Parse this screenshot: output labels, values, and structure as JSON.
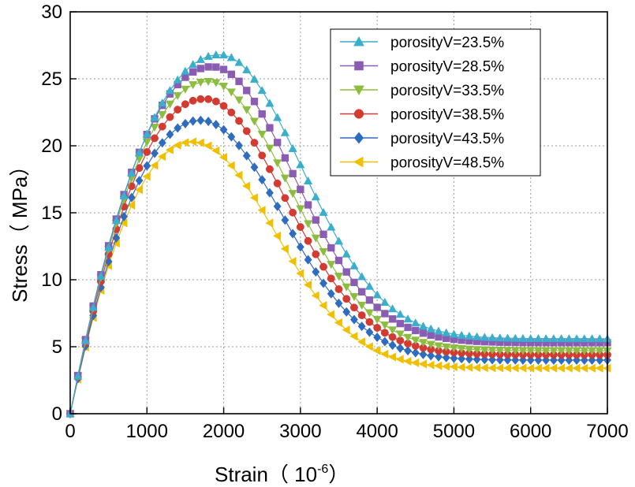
{
  "chart_data": {
    "type": "scatter",
    "title": "",
    "xlabel": "Strain",
    "xlabel_unit_base": "（ 10",
    "xlabel_unit_exp": "-6",
    "xlabel_unit_close": "）",
    "ylabel": "Stress（ MPa）",
    "xlim": [
      0,
      7000
    ],
    "ylim": [
      0,
      30
    ],
    "xticks": [
      0,
      1000,
      2000,
      3000,
      4000,
      5000,
      6000,
      7000
    ],
    "yticks": [
      0,
      5,
      10,
      15,
      20,
      25,
      30
    ],
    "x_tick_labels": [
      "0",
      "1000",
      "2000",
      "3000",
      "4000",
      "5000",
      "6000",
      "7000"
    ],
    "y_tick_labels": [
      "0",
      "5",
      "10",
      "15",
      "20",
      "25",
      "30"
    ],
    "grid": true,
    "legend_position": "top-right",
    "series": [
      {
        "name": "porosityV=23.5%",
        "color": "#3aaecb",
        "marker": "triangle-up",
        "peak_x": 1950,
        "peak_y": 26.8,
        "final_y": 5.6
      },
      {
        "name": "porosityV=28.5%",
        "color": "#8a5db3",
        "marker": "square",
        "peak_x": 1850,
        "peak_y": 25.9,
        "final_y": 5.3
      },
      {
        "name": "porosityV=33.5%",
        "color": "#8cbd3f",
        "marker": "triangle-down",
        "peak_x": 1800,
        "peak_y": 24.8,
        "final_y": 4.7
      },
      {
        "name": "porosityV=38.5%",
        "color": "#d23a32",
        "marker": "circle",
        "peak_x": 1750,
        "peak_y": 23.5,
        "final_y": 4.4
      },
      {
        "name": "porosityV=43.5%",
        "color": "#2e6cc0",
        "marker": "diamond",
        "peak_x": 1700,
        "peak_y": 21.9,
        "final_y": 4.0
      },
      {
        "name": "porosityV=48.5%",
        "color": "#f0c000",
        "marker": "triangle-left",
        "peak_x": 1600,
        "peak_y": 20.3,
        "final_y": 3.4
      }
    ]
  }
}
